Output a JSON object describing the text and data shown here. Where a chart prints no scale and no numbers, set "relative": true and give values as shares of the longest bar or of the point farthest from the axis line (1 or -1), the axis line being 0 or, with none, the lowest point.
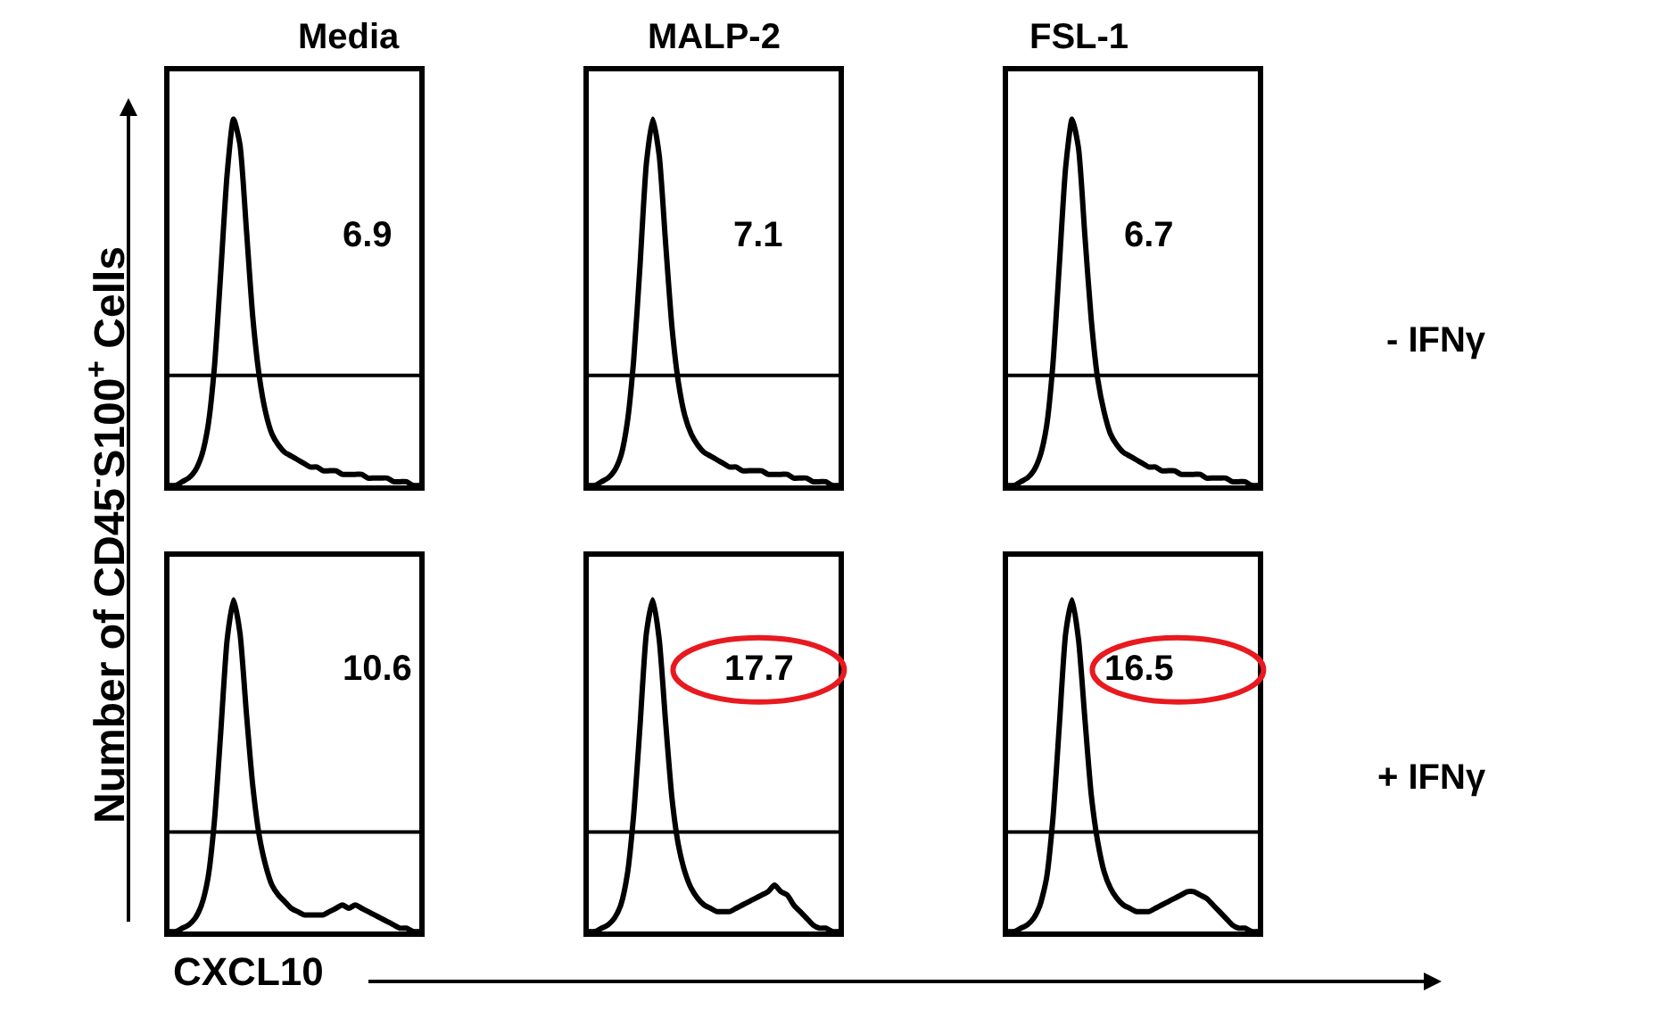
{
  "chart_data": [
    {
      "type": "line",
      "title": "Media",
      "ylabel": "Number of CD45$^{-}$S100$^{+}$ Cells",
      "relative": true,
      "categories": [
        null,
        null,
        null,
        null,
        null,
        null,
        null,
        null,
        null,
        null,
        null,
        null,
        null,
        null,
        null,
        null,
        null,
        null,
        null,
        null,
        null,
        null,
        null,
        null,
        null,
        null,
        null,
        null,
        null,
        null,
        null,
        null,
        null,
        null,
        null,
        null,
        null,
        null,
        null,
        null
      ],
      "series": [
        {
          "color": "#000000",
          "values": [
            0,
            0,
            0.01,
            0.02,
            0.04,
            0.08,
            0.16,
            0.32,
            0.58,
            0.85,
            1.0,
            0.93,
            0.7,
            0.46,
            0.3,
            0.2,
            0.14,
            0.11,
            0.09,
            0.08,
            0.07,
            0.06,
            0.05,
            0.05,
            0.04,
            0.04,
            0.04,
            0.03,
            0.03,
            0.03,
            0.03,
            0.02,
            0.02,
            0.02,
            0.02,
            0.01,
            0.01,
            0.01,
            0,
            0
          ]
        }
      ],
      "ref_lines": [
        {
          "axis": "y",
          "value": 0.3
        }
      ],
      "annotations": [
        "6.9"
      ]
    },
    {
      "type": "line",
      "title": "MALP-2",
      "relative": true,
      "categories": [
        null,
        null,
        null,
        null,
        null,
        null,
        null,
        null,
        null,
        null,
        null,
        null,
        null,
        null,
        null,
        null,
        null,
        null,
        null,
        null,
        null,
        null,
        null,
        null,
        null,
        null,
        null,
        null,
        null,
        null,
        null,
        null,
        null,
        null,
        null,
        null,
        null,
        null,
        null,
        null
      ],
      "series": [
        {
          "color": "#000000",
          "values": [
            0,
            0,
            0.01,
            0.02,
            0.04,
            0.08,
            0.17,
            0.34,
            0.6,
            0.88,
            1.0,
            0.9,
            0.66,
            0.43,
            0.28,
            0.19,
            0.14,
            0.11,
            0.09,
            0.08,
            0.07,
            0.06,
            0.05,
            0.05,
            0.04,
            0.04,
            0.04,
            0.04,
            0.03,
            0.03,
            0.03,
            0.03,
            0.02,
            0.02,
            0.02,
            0.01,
            0.01,
            0.01,
            0,
            0
          ]
        }
      ],
      "ref_lines": [
        {
          "axis": "y",
          "value": 0.3
        }
      ],
      "annotations": [
        "7.1"
      ]
    },
    {
      "type": "line",
      "title": "FSL-1",
      "relative": true,
      "categories": [
        null,
        null,
        null,
        null,
        null,
        null,
        null,
        null,
        null,
        null,
        null,
        null,
        null,
        null,
        null,
        null,
        null,
        null,
        null,
        null,
        null,
        null,
        null,
        null,
        null,
        null,
        null,
        null,
        null,
        null,
        null,
        null,
        null,
        null,
        null,
        null,
        null,
        null,
        null,
        null
      ],
      "series": [
        {
          "color": "#000000",
          "values": [
            0,
            0,
            0.01,
            0.02,
            0.04,
            0.08,
            0.16,
            0.33,
            0.6,
            0.87,
            1.0,
            0.92,
            0.68,
            0.45,
            0.29,
            0.2,
            0.14,
            0.11,
            0.09,
            0.08,
            0.07,
            0.06,
            0.05,
            0.05,
            0.04,
            0.04,
            0.04,
            0.03,
            0.03,
            0.03,
            0.03,
            0.02,
            0.02,
            0.02,
            0.02,
            0.01,
            0.01,
            0.01,
            0,
            0
          ]
        }
      ],
      "ref_lines": [
        {
          "axis": "y",
          "value": 0.3
        }
      ],
      "annotations": [
        "6.7",
        "- IFNγ"
      ]
    },
    {
      "type": "line",
      "xlabel": "CXCL10",
      "relative": true,
      "categories": [
        null,
        null,
        null,
        null,
        null,
        null,
        null,
        null,
        null,
        null,
        null,
        null,
        null,
        null,
        null,
        null,
        null,
        null,
        null,
        null,
        null,
        null,
        null,
        null,
        null,
        null,
        null,
        null,
        null,
        null,
        null,
        null,
        null,
        null,
        null,
        null,
        null,
        null,
        null,
        null
      ],
      "series": [
        {
          "color": "#000000",
          "values": [
            0,
            0,
            0.01,
            0.02,
            0.04,
            0.08,
            0.16,
            0.33,
            0.6,
            0.88,
            1.0,
            0.9,
            0.66,
            0.44,
            0.29,
            0.2,
            0.14,
            0.11,
            0.09,
            0.07,
            0.06,
            0.05,
            0.05,
            0.05,
            0.05,
            0.06,
            0.07,
            0.08,
            0.07,
            0.08,
            0.07,
            0.06,
            0.05,
            0.04,
            0.03,
            0.02,
            0.01,
            0.01,
            0,
            0
          ]
        }
      ],
      "ref_lines": [
        {
          "axis": "y",
          "value": 0.3
        }
      ],
      "annotations": [
        "10.6"
      ]
    },
    {
      "type": "line",
      "relative": true,
      "categories": [
        null,
        null,
        null,
        null,
        null,
        null,
        null,
        null,
        null,
        null,
        null,
        null,
        null,
        null,
        null,
        null,
        null,
        null,
        null,
        null,
        null,
        null,
        null,
        null,
        null,
        null,
        null,
        null,
        null,
        null,
        null,
        null,
        null,
        null,
        null,
        null,
        null,
        null,
        null,
        null
      ],
      "series": [
        {
          "color": "#000000",
          "values": [
            0,
            0,
            0.01,
            0.02,
            0.04,
            0.08,
            0.17,
            0.35,
            0.62,
            0.9,
            1.0,
            0.88,
            0.63,
            0.4,
            0.26,
            0.18,
            0.13,
            0.1,
            0.08,
            0.07,
            0.06,
            0.06,
            0.06,
            0.07,
            0.08,
            0.09,
            0.1,
            0.11,
            0.12,
            0.14,
            0.12,
            0.11,
            0.08,
            0.06,
            0.04,
            0.02,
            0.01,
            0.01,
            0,
            0
          ]
        }
      ],
      "ref_lines": [
        {
          "axis": "y",
          "value": 0.3
        }
      ],
      "annotations": [
        {
          "text": "17.7"
        }
      ]
    },
    {
      "type": "line",
      "relative": true,
      "categories": [
        null,
        null,
        null,
        null,
        null,
        null,
        null,
        null,
        null,
        null,
        null,
        null,
        null,
        null,
        null,
        null,
        null,
        null,
        null,
        null,
        null,
        null,
        null,
        null,
        null,
        null,
        null,
        null,
        null,
        null,
        null,
        null,
        null,
        null,
        null,
        null,
        null,
        null,
        null,
        null
      ],
      "series": [
        {
          "color": "#000000",
          "values": [
            0,
            0,
            0.01,
            0.02,
            0.04,
            0.08,
            0.16,
            0.34,
            0.62,
            0.9,
            1.0,
            0.88,
            0.64,
            0.41,
            0.27,
            0.18,
            0.13,
            0.1,
            0.08,
            0.07,
            0.06,
            0.06,
            0.06,
            0.07,
            0.08,
            0.09,
            0.1,
            0.11,
            0.12,
            0.12,
            0.11,
            0.1,
            0.08,
            0.06,
            0.04,
            0.02,
            0.01,
            0.01,
            0,
            0
          ]
        }
      ],
      "ref_lines": [
        {
          "axis": "y",
          "value": 0.3
        }
      ],
      "annotations": [
        {
          "text": "16.5"
        },
        "+ IFNγ"
      ]
    }
  ]
}
